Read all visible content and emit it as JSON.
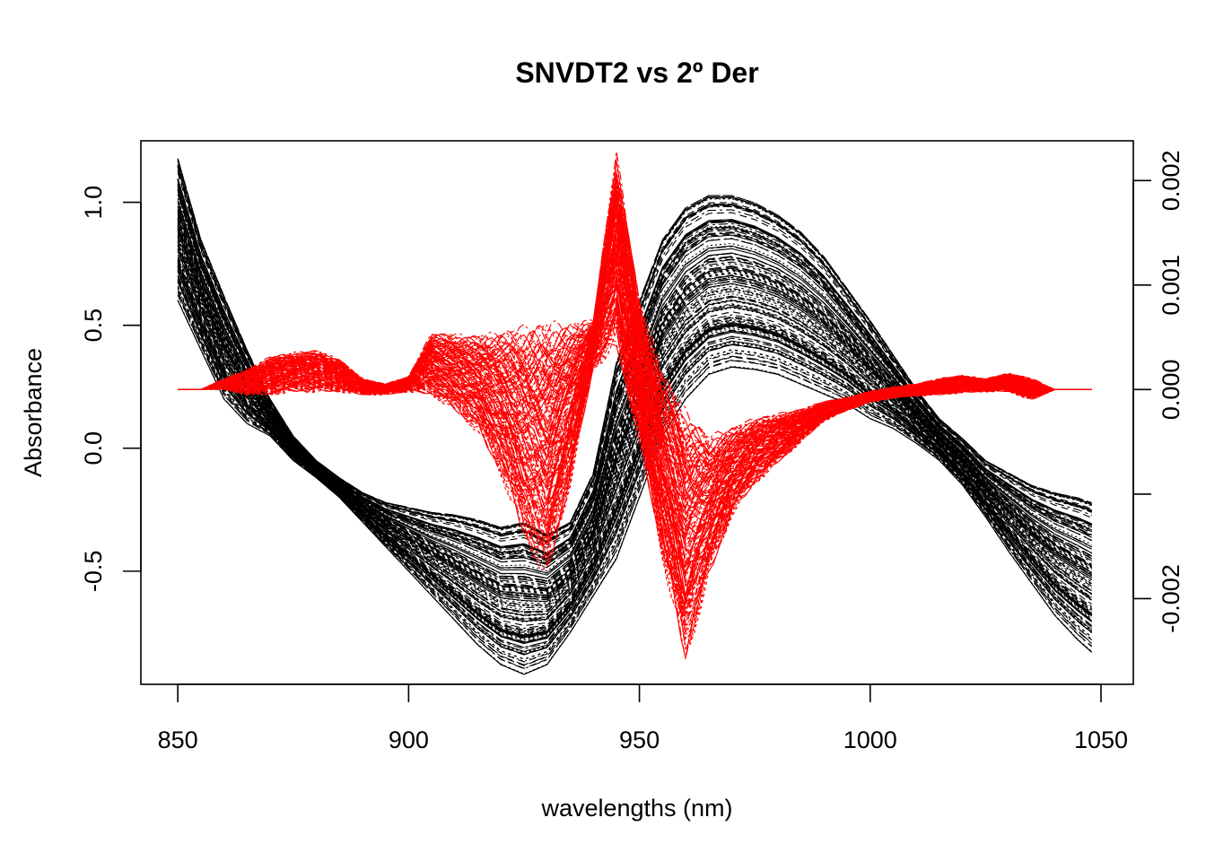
{
  "chart_data": {
    "type": "line",
    "title": "SNVDT2 vs 2º Der",
    "xlabel": "wavelengths (nm)",
    "ylabel": "Absorbance",
    "y2label": "",
    "xlim": [
      842,
      1057
    ],
    "ylim": [
      -0.96,
      1.25
    ],
    "y2lim": [
      -0.00282,
      0.00238
    ],
    "x_ticks": [
      850,
      900,
      950,
      1000,
      1050
    ],
    "y_ticks": [
      -0.5,
      0.0,
      0.5,
      1.0
    ],
    "y_tick_labels": [
      "-0.5",
      "0.0",
      "0.5",
      "1.0"
    ],
    "y2_ticks": [
      -0.002,
      -0.001,
      0.0,
      0.001,
      0.002
    ],
    "y2_tick_labels": [
      "-0.002",
      "",
      "0.000",
      "0.001",
      "0.002"
    ],
    "grid": false,
    "series": [
      {
        "axis": "left",
        "color": "#000000",
        "count": 140,
        "note_x": [
          850,
          855,
          860,
          865,
          870,
          875,
          880,
          885,
          890,
          895,
          900,
          905,
          910,
          915,
          920,
          925,
          930,
          935,
          940,
          945,
          950,
          955,
          960,
          965,
          970,
          975,
          980,
          985,
          990,
          995,
          1000,
          1005,
          1010,
          1015,
          1020,
          1025,
          1030,
          1035,
          1040,
          1045,
          1048
        ],
        "upper_envelope": [
          1.18,
          0.85,
          0.62,
          0.4,
          0.2,
          0.05,
          -0.05,
          -0.12,
          -0.18,
          -0.22,
          -0.24,
          -0.26,
          -0.27,
          -0.29,
          -0.32,
          -0.3,
          -0.35,
          -0.3,
          -0.1,
          0.35,
          0.6,
          0.85,
          0.98,
          1.03,
          1.03,
          1.0,
          0.95,
          0.88,
          0.78,
          0.65,
          0.52,
          0.38,
          0.24,
          0.12,
          0.04,
          -0.05,
          -0.1,
          -0.15,
          -0.18,
          -0.2,
          -0.22
        ],
        "lower_envelope": [
          0.6,
          0.4,
          0.2,
          0.1,
          0.05,
          -0.05,
          -0.12,
          -0.2,
          -0.3,
          -0.4,
          -0.5,
          -0.6,
          -0.7,
          -0.8,
          -0.88,
          -0.92,
          -0.88,
          -0.75,
          -0.6,
          -0.45,
          -0.2,
          0.05,
          0.2,
          0.3,
          0.33,
          0.32,
          0.3,
          0.26,
          0.22,
          0.18,
          0.12,
          0.08,
          0.02,
          -0.05,
          -0.15,
          -0.28,
          -0.42,
          -0.55,
          -0.68,
          -0.78,
          -0.83
        ]
      },
      {
        "axis": "right",
        "color": "#ff0000",
        "count": 140,
        "note_x": [
          850,
          855,
          860,
          865,
          870,
          875,
          880,
          885,
          890,
          895,
          900,
          905,
          910,
          915,
          920,
          925,
          930,
          935,
          940,
          945,
          950,
          955,
          960,
          965,
          970,
          975,
          980,
          985,
          990,
          995,
          1000,
          1005,
          1010,
          1015,
          1020,
          1025,
          1030,
          1035,
          1040,
          1045,
          1048
        ],
        "upper_envelope": [
          0.0,
          0.0,
          0.0001,
          0.00018,
          0.0003,
          0.00034,
          0.00036,
          0.00028,
          0.0001,
          5e-05,
          0.00012,
          0.00052,
          0.0005,
          0.00048,
          0.0005,
          0.00052,
          0.00054,
          0.00057,
          0.00065,
          0.0022,
          0.0008,
          0.0001,
          -0.0003,
          -0.0005,
          -0.0004,
          -0.0003,
          -0.00025,
          -0.0002,
          -0.00012,
          -8e-05,
          -2e-05,
          2e-05,
          5e-05,
          0.0001,
          0.00013,
          0.0001,
          0.00015,
          0.0001,
          0.0,
          0.0,
          0.0
        ],
        "lower_envelope": [
          0.0,
          0.0,
          0.0,
          -5e-05,
          -5e-05,
          -2e-05,
          -2e-05,
          -2e-05,
          -5e-05,
          -5e-05,
          -2e-05,
          -5e-05,
          -0.0002,
          -0.0004,
          -0.0008,
          -0.0014,
          -0.0018,
          -0.0009,
          0.0002,
          0.0004,
          -0.0005,
          -0.0016,
          -0.0026,
          -0.0018,
          -0.0012,
          -0.0009,
          -0.0007,
          -0.0005,
          -0.0003,
          -0.0002,
          -0.00012,
          -8e-05,
          -6e-05,
          -5e-05,
          -3e-05,
          -2e-05,
          -2e-05,
          -0.0001,
          0.0,
          0.0,
          0.0
        ]
      }
    ]
  }
}
